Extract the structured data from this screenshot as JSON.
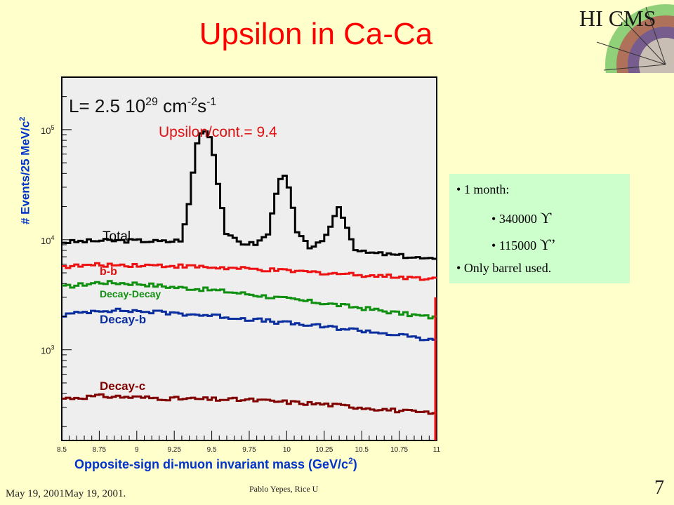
{
  "slide": {
    "title": "Upsilon in Ca-Ca",
    "logo_text": "HI CMS",
    "footer_left": "May 19, 2001May 19, 2001.",
    "footer_center": "Pablo Yepes, Rice U",
    "page_number": "7",
    "background": "#FFFFCC"
  },
  "infobox": {
    "line1": "1 month:",
    "line2_count": "340000",
    "line2_symbol": "ϒ",
    "line3_count": "115000",
    "line3_symbol": "ϒ’",
    "line4": "Only barrel used."
  },
  "chart_data": {
    "type": "line",
    "ylabel": "# Events/25 MeV/c",
    "ylabel_sup": "2",
    "xlabel": "Opposite-sign di-muon invariant mass (GeV/c",
    "xlabel_sup": "2",
    "xlabel_end": ")",
    "xlim": [
      8.5,
      11
    ],
    "ylim": [
      150,
      300000
    ],
    "yscale": "log",
    "x_ticks": [
      "8.5",
      "8.75",
      "9",
      "9.25",
      "9.5",
      "9.75",
      "10",
      "10.25",
      "10.5",
      "10.75",
      "11"
    ],
    "y_ticks": [
      {
        "base": "10",
        "exp": "3",
        "value": 1000
      },
      {
        "base": "10",
        "exp": "4",
        "value": 10000
      },
      {
        "base": "10",
        "exp": "5",
        "value": 100000
      }
    ],
    "annotations": {
      "lumi_main": "L= 2.5 10",
      "lumi_exp1": "29",
      "lumi_unit": " cm",
      "lumi_exp2": "-2",
      "lumi_s": "s",
      "lumi_exp3": "-1",
      "ratio": "Upsilon/cont.= 9.4"
    },
    "series": [
      {
        "name": "Total",
        "color": "#000000",
        "x": [
          8.5,
          8.75,
          9.0,
          9.2,
          9.3,
          9.35,
          9.4,
          9.45,
          9.5,
          9.55,
          9.6,
          9.7,
          9.8,
          9.88,
          9.93,
          9.97,
          10.02,
          10.07,
          10.15,
          10.25,
          10.3,
          10.35,
          10.4,
          10.45,
          10.5,
          10.6,
          10.75,
          11.0
        ],
        "y": [
          9500,
          9800,
          9800,
          9600,
          10000,
          22000,
          75000,
          105000,
          80000,
          28000,
          11000,
          9300,
          9200,
          11500,
          27000,
          42000,
          28000,
          11500,
          8600,
          9500,
          14500,
          20000,
          13500,
          8500,
          7700,
          7500,
          7200,
          6500
        ]
      },
      {
        "name": "b-b",
        "color": "#EE1111",
        "x": [
          8.5,
          8.75,
          9.0,
          9.25,
          9.5,
          9.75,
          10.0,
          10.25,
          10.5,
          10.75,
          11.0
        ],
        "y": [
          5700,
          5900,
          5900,
          5800,
          5600,
          5400,
          5200,
          5000,
          4800,
          4600,
          4400
        ]
      },
      {
        "name": "Decay-Decay",
        "color": "#109010",
        "x": [
          8.5,
          8.75,
          9.0,
          9.25,
          9.5,
          9.75,
          10.0,
          10.25,
          10.5,
          10.75,
          11.0
        ],
        "y": [
          3700,
          4100,
          4000,
          3700,
          3500,
          3200,
          2900,
          2650,
          2400,
          2150,
          1950
        ]
      },
      {
        "name": "Decay-b",
        "color": "#0A2E9E",
        "x": [
          8.5,
          8.75,
          9.0,
          9.25,
          9.5,
          9.75,
          10.0,
          10.25,
          10.5,
          10.75,
          11.0
        ],
        "y": [
          2050,
          2300,
          2250,
          2150,
          2050,
          1900,
          1750,
          1620,
          1500,
          1360,
          1200
        ]
      },
      {
        "name": "Decay-c",
        "color": "#800000",
        "x": [
          8.5,
          8.75,
          9.0,
          9.25,
          9.5,
          9.75,
          10.0,
          10.25,
          10.5,
          10.75,
          11.0
        ],
        "y": [
          360,
          380,
          370,
          360,
          355,
          350,
          335,
          320,
          300,
          280,
          260
        ]
      }
    ],
    "grid": false,
    "legend": "inline labels"
  }
}
